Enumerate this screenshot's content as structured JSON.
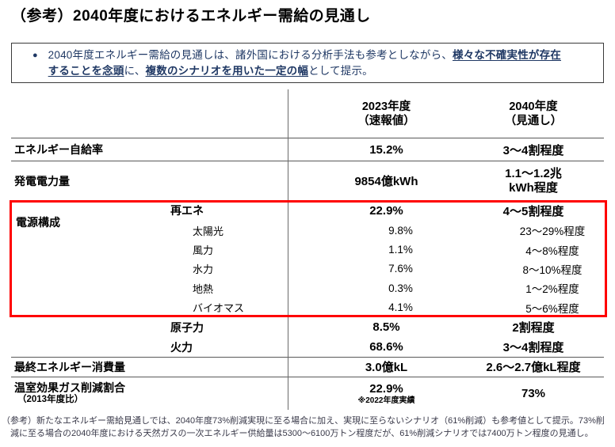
{
  "title": "（参考）2040年度におけるエネルギー需給の見通し",
  "notice": {
    "bullet": "●",
    "line1_text": "2040年度エネルギー需給の見通しは、諸外国における分析手法も参考としながら、",
    "line1_strong": "様々な不確実性が存在",
    "line2_strong1": "することを念頭",
    "line2_mid": "に、",
    "line2_strong2": "複数のシナリオを用いた一定の幅",
    "line2_end": "として提示。"
  },
  "table": {
    "header": {
      "c2023_line1": "2023年度",
      "c2023_line2": "（速報値）",
      "c2040_line1": "2040年度",
      "c2040_line2": "（見通し）"
    },
    "group_label": "電源構成",
    "rows": {
      "jikyuritsu": {
        "label": "エネルギー自給率",
        "v2023": "15.2%",
        "v2040": "3～4割程度"
      },
      "hatsuden": {
        "label": "発電電力量",
        "v2023": "9854億kWh",
        "v2040_line1": "1.1～1.2兆",
        "v2040_line2": "kWh程度"
      },
      "saiene": {
        "label": "再エネ",
        "v2023": "22.9%",
        "v2040": "4～5割程度"
      },
      "taiyoko": {
        "label": "太陽光",
        "v2023": "9.8%",
        "v2040": "23～29%程度"
      },
      "furyoku": {
        "label": "風力",
        "v2023": "1.1%",
        "v2040": "4～8%程度"
      },
      "suiryoku": {
        "label": "水力",
        "v2023": "7.6%",
        "v2040": "8～10%程度"
      },
      "chinetsu": {
        "label": "地熱",
        "v2023": "0.3%",
        "v2040": "1～2%程度"
      },
      "biomass": {
        "label": "バイオマス",
        "v2023": "4.1%",
        "v2040": "5～6%程度"
      },
      "genshiryoku": {
        "label": "原子力",
        "v2023": "8.5%",
        "v2040": "2割程度"
      },
      "karyoku": {
        "label": "火力",
        "v2023": "68.6%",
        "v2040": "3～4割程度"
      },
      "saishu": {
        "label": "最終エネルギー消費量",
        "v2023": "3.0億kL",
        "v2040": "2.6～2.7億kL程度"
      },
      "onshitsu": {
        "label": "温室効果ガス削減割合",
        "label_sub": "（2013年度比）",
        "v2023": "22.9%",
        "v2023_note": "※2022年度実績",
        "v2040": "73%"
      }
    }
  },
  "footnote": {
    "line1": "（参考）新たなエネルギー需給見通しでは、2040年度73%削減実現に至る場合に加え、実現に至らないシナリオ（61%削減）も参考値として提示。73%削",
    "line2": "減に至る場合の2040年度における天然ガスの一次エネルギー供給量は5300～6100万トン程度だが、61%削減シナリオでは7400万トン程度の見通し。"
  },
  "colors": {
    "highlight_red": "#ff0000",
    "notice_navy": "#1f3864"
  }
}
